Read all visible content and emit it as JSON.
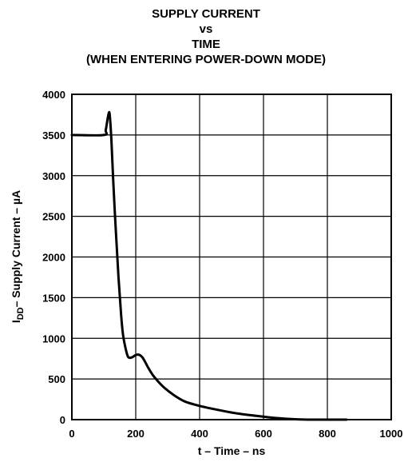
{
  "chart_data": {
    "type": "line",
    "title_lines": [
      "SUPPLY CURRENT",
      "vs",
      "TIME",
      "(WHEN ENTERING POWER-DOWN MODE)"
    ],
    "xlabel": "t – Time – ns",
    "ylabel_main": "I",
    "ylabel_sub": "DD",
    "ylabel_rest": "– Supply Current – µA",
    "xlim": [
      0,
      1000
    ],
    "ylim": [
      0,
      4000
    ],
    "x_ticks": [
      "0",
      "200",
      "400",
      "600",
      "800",
      "1000"
    ],
    "y_ticks": [
      "0",
      "500",
      "1000",
      "1500",
      "2000",
      "2500",
      "3000",
      "3500",
      "4000"
    ],
    "grid": true,
    "series": [
      {
        "x": [
          0,
          100,
          106,
          112,
          117,
          120,
          124,
          130,
          138,
          146,
          154,
          160,
          168,
          175,
          182,
          190,
          198,
          205,
          212,
          220,
          228,
          236,
          245,
          255,
          270,
          290,
          320,
          350,
          380,
          420,
          470,
          520,
          580,
          640,
          700,
          750,
          800,
          860
        ],
        "y": [
          3500,
          3500,
          3560,
          3700,
          3780,
          3680,
          3420,
          2900,
          2300,
          1750,
          1300,
          1050,
          880,
          780,
          760,
          770,
          790,
          800,
          795,
          770,
          720,
          660,
          600,
          540,
          470,
          390,
          300,
          230,
          190,
          150,
          110,
          75,
          45,
          20,
          5,
          0,
          0,
          0
        ]
      }
    ]
  }
}
